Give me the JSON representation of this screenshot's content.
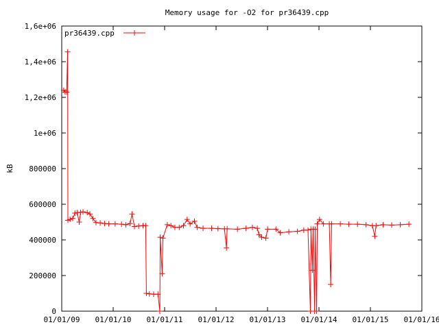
{
  "chart_data": {
    "type": "line",
    "title": "Memory usage for -O2 for pr36439.cpp",
    "xlabel": "",
    "ylabel": "kB",
    "x_ticks": [
      "01/01/09",
      "01/01/10",
      "01/01/11",
      "01/01/12",
      "01/01/13",
      "01/01/14",
      "01/01/15",
      "01/01/16"
    ],
    "y_ticks": [
      "0",
      "200000",
      "400000",
      "600000",
      "800000",
      "1e+06",
      "1,2e+06",
      "1,4e+06",
      "1,6e+06"
    ],
    "xlim": [
      "2009-01-01",
      "2016-01-01"
    ],
    "ylim": [
      0,
      1600000
    ],
    "grid": false,
    "legend_position": "top-left",
    "colors": {
      "series": "#ff0000",
      "axes": "#000000"
    },
    "series": [
      {
        "name": "pr36439.cpp",
        "marker": "plus",
        "points": [
          [
            "2009-01-15",
            1240000
          ],
          [
            "2009-01-25",
            1230000
          ],
          [
            "2009-02-05",
            1230000
          ],
          [
            "2009-02-12",
            1455000
          ],
          [
            "2009-02-14",
            510000
          ],
          [
            "2009-03-01",
            515000
          ],
          [
            "2009-03-20",
            520000
          ],
          [
            "2009-04-05",
            550000
          ],
          [
            "2009-04-20",
            553000
          ],
          [
            "2009-05-05",
            500000
          ],
          [
            "2009-05-15",
            555000
          ],
          [
            "2009-06-01",
            557000
          ],
          [
            "2009-07-01",
            553000
          ],
          [
            "2009-07-20",
            545000
          ],
          [
            "2009-08-10",
            520000
          ],
          [
            "2009-09-01",
            497000
          ],
          [
            "2009-10-01",
            495000
          ],
          [
            "2009-11-01",
            492000
          ],
          [
            "2009-12-01",
            490000
          ],
          [
            "2010-01-15",
            490000
          ],
          [
            "2010-03-01",
            488000
          ],
          [
            "2010-04-01",
            485000
          ],
          [
            "2010-05-01",
            492000
          ],
          [
            "2010-05-15",
            545000
          ],
          [
            "2010-06-01",
            475000
          ],
          [
            "2010-07-01",
            478000
          ],
          [
            "2010-08-01",
            480000
          ],
          [
            "2010-08-20",
            480000
          ],
          [
            "2010-08-25",
            100000
          ],
          [
            "2010-09-15",
            97000
          ],
          [
            "2010-10-15",
            95000
          ],
          [
            "2010-11-15",
            95000
          ],
          [
            "2010-11-28",
            0
          ],
          [
            "2010-12-01",
            415000
          ],
          [
            "2010-12-15",
            210000
          ],
          [
            "2010-12-20",
            410000
          ],
          [
            "2011-01-20",
            485000
          ],
          [
            "2011-02-15",
            480000
          ],
          [
            "2011-03-15",
            470000
          ],
          [
            "2011-04-15",
            470000
          ],
          [
            "2011-05-15",
            480000
          ],
          [
            "2011-06-10",
            515000
          ],
          [
            "2011-07-01",
            490000
          ],
          [
            "2011-08-01",
            505000
          ],
          [
            "2011-08-20",
            470000
          ],
          [
            "2011-10-01",
            465000
          ],
          [
            "2011-12-01",
            465000
          ],
          [
            "2012-01-15",
            463000
          ],
          [
            "2012-03-01",
            462000
          ],
          [
            "2012-03-15",
            355000
          ],
          [
            "2012-03-20",
            462000
          ],
          [
            "2012-06-01",
            460000
          ],
          [
            "2012-08-01",
            465000
          ],
          [
            "2012-09-15",
            470000
          ],
          [
            "2012-10-20",
            465000
          ],
          [
            "2012-11-01",
            430000
          ],
          [
            "2012-11-20",
            415000
          ],
          [
            "2012-12-20",
            410000
          ],
          [
            "2013-01-01",
            460000
          ],
          [
            "2013-03-01",
            460000
          ],
          [
            "2013-04-01",
            440000
          ],
          [
            "2013-06-01",
            445000
          ],
          [
            "2013-08-01",
            448000
          ],
          [
            "2013-09-15",
            455000
          ],
          [
            "2013-10-15",
            455000
          ],
          [
            "2013-11-01",
            0
          ],
          [
            "2013-11-05",
            460000
          ],
          [
            "2013-11-15",
            230000
          ],
          [
            "2013-11-20",
            460000
          ],
          [
            "2013-12-01",
            0
          ],
          [
            "2013-12-05",
            460000
          ],
          [
            "2013-12-15",
            0
          ],
          [
            "2013-12-20",
            490000
          ],
          [
            "2014-01-05",
            515000
          ],
          [
            "2014-02-01",
            490000
          ],
          [
            "2014-03-15",
            490000
          ],
          [
            "2014-03-25",
            150000
          ],
          [
            "2014-04-01",
            490000
          ],
          [
            "2014-06-01",
            490000
          ],
          [
            "2014-08-01",
            488000
          ],
          [
            "2014-10-01",
            488000
          ],
          [
            "2014-12-01",
            485000
          ],
          [
            "2015-01-15",
            480000
          ],
          [
            "2015-02-01",
            420000
          ],
          [
            "2015-02-10",
            480000
          ],
          [
            "2015-04-01",
            485000
          ],
          [
            "2015-06-01",
            483000
          ],
          [
            "2015-08-01",
            485000
          ],
          [
            "2015-10-01",
            488000
          ]
        ]
      }
    ]
  }
}
